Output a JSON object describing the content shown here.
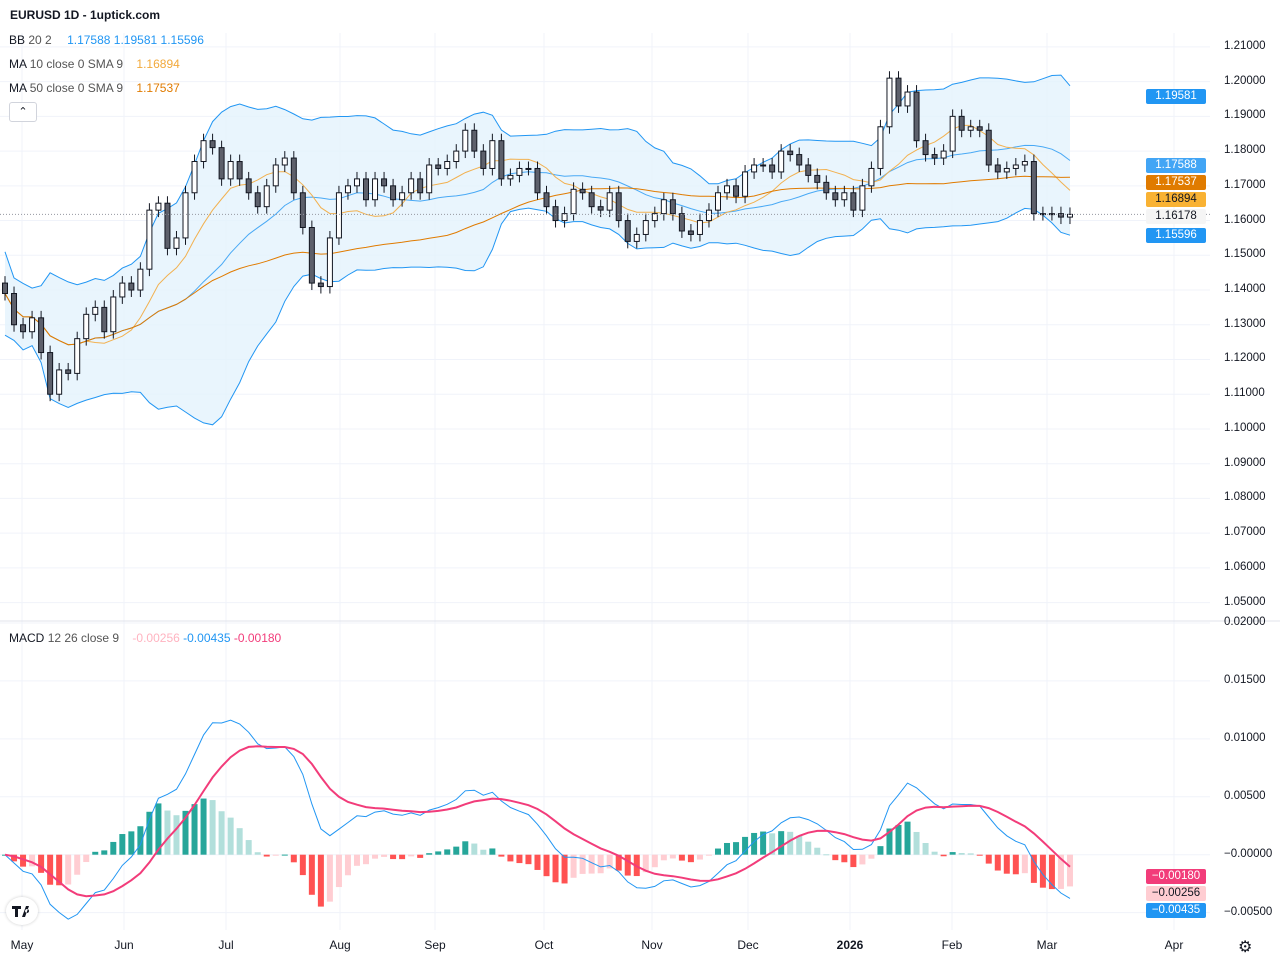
{
  "title": "EURUSD 1D - 1uptick.com",
  "legend": {
    "bb": {
      "name": "BB",
      "params": "20 2",
      "values": [
        "1.17588",
        "1.19581",
        "1.15596"
      ]
    },
    "ma10": {
      "name": "MA",
      "params": "10 close 0 SMA 9",
      "value": "1.16894"
    },
    "ma50": {
      "name": "MA",
      "params": "50 close 0 SMA 9",
      "value": "1.17537"
    },
    "macd": {
      "name": "MACD",
      "params": "12 26 close 9",
      "values": [
        "-0.00256",
        "-0.00435",
        "-0.00180"
      ]
    },
    "collapse_icon": "chevron-up-icon"
  },
  "colors": {
    "bb": "#2196f3",
    "bb_fill": "#e3f2fd",
    "ma10": "#f2b150",
    "ma50": "#e07b00",
    "up": "#ffffff",
    "down": "#5d606b",
    "macd": "#2196f3",
    "signal": "#f23c7a",
    "hist_up_strong": "#26a69a",
    "hist_up_weak": "#b2dfdb",
    "hist_down_strong": "#ff5252",
    "hist_down_weak": "#ffcdd2"
  },
  "chart_data": {
    "type": "candlestick",
    "symbol": "EURUSD",
    "interval": "1D",
    "price_axis": {
      "ylim": [
        1.045,
        1.214
      ],
      "ticks": [
        "1.21000",
        "1.20000",
        "1.19000",
        "1.18000",
        "1.17000",
        "1.16000",
        "1.15000",
        "1.14000",
        "1.13000",
        "1.12000",
        "1.11000",
        "1.10000",
        "1.09000",
        "1.08000",
        "1.07000",
        "1.06000",
        "1.05000"
      ]
    },
    "macd_axis": {
      "ylim": [
        -0.0065,
        0.02
      ],
      "ticks": [
        "0.02000",
        "0.01500",
        "0.01000",
        "0.00500",
        "-0.00000",
        "-0.00500"
      ]
    },
    "time_axis": {
      "labels": [
        "May",
        "Jun",
        "Jul",
        "Aug",
        "Sep",
        "Oct",
        "Nov",
        "Dec",
        "2026",
        "Feb",
        "Mar",
        "Apr"
      ],
      "bold": [
        "2026"
      ]
    },
    "grid": true,
    "closes": [
      1.139,
      1.13,
      1.128,
      1.132,
      1.122,
      1.11,
      1.117,
      1.116,
      1.126,
      1.133,
      1.135,
      1.128,
      1.138,
      1.142,
      1.14,
      1.146,
      1.163,
      1.165,
      1.152,
      1.155,
      1.168,
      1.177,
      1.183,
      1.181,
      1.172,
      1.177,
      1.172,
      1.168,
      1.164,
      1.17,
      1.176,
      1.178,
      1.168,
      1.158,
      1.142,
      1.141,
      1.155,
      1.168,
      1.17,
      1.172,
      1.166,
      1.172,
      1.17,
      1.166,
      1.168,
      1.172,
      1.168,
      1.176,
      1.175,
      1.177,
      1.18,
      1.186,
      1.18,
      1.175,
      1.183,
      1.172,
      1.173,
      1.175,
      1.175,
      1.168,
      1.164,
      1.16,
      1.162,
      1.169,
      1.168,
      1.164,
      1.163,
      1.168,
      1.16,
      1.154,
      1.156,
      1.16,
      1.162,
      1.166,
      1.162,
      1.157,
      1.156,
      1.16,
      1.163,
      1.168,
      1.17,
      1.167,
      1.174,
      1.176,
      1.176,
      1.174,
      1.18,
      1.179,
      1.176,
      1.173,
      1.171,
      1.168,
      1.166,
      1.168,
      1.163,
      1.17,
      1.175,
      1.187,
      1.201,
      1.193,
      1.197,
      1.183,
      1.179,
      1.178,
      1.18,
      1.19,
      1.186,
      1.187,
      1.186,
      1.176,
      1.174,
      1.175,
      1.176,
      1.177,
      1.162,
      1.162,
      1.162,
      1.161,
      1.16178
    ],
    "price_badges": [
      {
        "label": "1.19581",
        "value": 1.19581,
        "bg": "#2196f3",
        "fg": "#ffffff"
      },
      {
        "label": "1.17588",
        "value": 1.17588,
        "bg": "#42a5f5",
        "fg": "#ffffff"
      },
      {
        "label": "1.17537",
        "value": 1.17537,
        "bg": "#e07b00",
        "fg": "#ffffff"
      },
      {
        "label": "1.16894",
        "value": 1.16894,
        "bg": "#f9b233",
        "fg": "#131722"
      },
      {
        "label": "1.16178",
        "value": 1.16178,
        "bg": "#f5f5f5",
        "fg": "#131722"
      },
      {
        "label": "1.15596",
        "value": 1.15596,
        "bg": "#2196f3",
        "fg": "#ffffff"
      }
    ],
    "macd_badges": [
      {
        "label": "-0.00180",
        "value": -0.0018,
        "bg": "#f23c7a",
        "fg": "#ffffff"
      },
      {
        "label": "-0.00256",
        "value": -0.00256,
        "bg": "#ffcdd2",
        "fg": "#131722"
      },
      {
        "label": "-0.00435",
        "value": -0.00435,
        "bg": "#2196f3",
        "fg": "#ffffff"
      }
    ]
  },
  "footer": {
    "logo": "tradingview-logo",
    "settings_icon": "gear-icon"
  }
}
